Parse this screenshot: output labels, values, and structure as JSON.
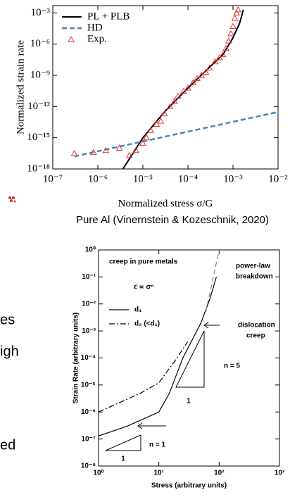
{
  "chart_data": [
    {
      "type": "line",
      "log_x": true,
      "log_y": true,
      "xlabel": "Normalized stress  σ/G",
      "ylabel": "Normalized strain rate",
      "xlim": [
        1e-07,
        0.01
      ],
      "ylim": [
        1e-18,
        0.005
      ],
      "xticks": [
        {
          "value": 1e-07,
          "label": "10⁻⁷"
        },
        {
          "value": 1e-06,
          "label": "10⁻⁶"
        },
        {
          "value": 1e-05,
          "label": "10⁻⁵"
        },
        {
          "value": 0.0001,
          "label": "10⁻⁴"
        },
        {
          "value": 0.001,
          "label": "10⁻³"
        },
        {
          "value": 0.01,
          "label": "10⁻²"
        }
      ],
      "yticks": [
        {
          "value": 1e-18,
          "label": "10⁻¹⁸"
        },
        {
          "value": 1e-15,
          "label": "10⁻¹⁵"
        },
        {
          "value": 1e-12,
          "label": "10⁻¹²"
        },
        {
          "value": 1e-09,
          "label": "10⁻⁹"
        },
        {
          "value": 1e-06,
          "label": "10⁻⁶"
        },
        {
          "value": 0.001,
          "label": "10⁻³"
        }
      ],
      "legend": "upper left",
      "series": [
        {
          "name": "PL + PLB",
          "color": "#000000",
          "style": "solid",
          "x": [
            3.6e-06,
            1e-05,
            3e-05,
            0.0001,
            0.0003,
            0.0006,
            0.001,
            0.0014,
            0.0017
          ],
          "y": [
            1e-18,
            1e-15,
            3e-13,
            6e-11,
            6e-09,
            1e-07,
            4e-06,
            0.0001,
            0.002
          ]
        },
        {
          "name": "HD",
          "color": "#3f88c5",
          "style": "dashed",
          "x": [
            3e-07,
            0.01
          ],
          "y": [
            1.6e-17,
            3e-13
          ]
        },
        {
          "name": "Exp.",
          "color": "#e8343a",
          "style": "triangles",
          "x": [
            3e-07,
            8e-07,
            1.5e-06,
            3e-06,
            5e-06,
            7e-06,
            1e-05,
            1.2e-05,
            1.5e-05,
            2e-05,
            2.5e-05,
            3e-05,
            4e-05,
            5e-05,
            6e-05,
            8e-05,
            0.0001,
            0.00013,
            0.00016,
            0.0002,
            0.00025,
            0.0003,
            0.0004,
            0.0005,
            0.0006,
            0.0007,
            0.0008,
            0.0009,
            0.001,
            0.0011,
            0.0012,
            0.0013
          ],
          "y": [
            3e-17,
            4e-17,
            6e-17,
            1e-16,
            2e-17,
            6e-17,
            3e-16,
            1e-15,
            5e-15,
            2e-14,
            4e-14,
            2e-13,
            1e-12,
            3e-12,
            1e-11,
            3e-11,
            6e-11,
            2e-10,
            5e-10,
            1e-09,
            2e-09,
            5e-09,
            2e-08,
            5e-08,
            1e-07,
            4e-07,
            2e-06,
            1e-05,
            5e-05,
            0.0003,
            0.001,
            0.002
          ]
        }
      ]
    },
    {
      "type": "line",
      "log_x": true,
      "log_y": true,
      "xlabel": "Stress (arbitrary units)",
      "ylabel": "Strain Rate (arbitrary units)",
      "xlim": [
        1,
        1000
      ],
      "ylim": [
        1e-08,
        1
      ],
      "xticks": [
        {
          "value": 1,
          "label": "10⁰"
        },
        {
          "value": 10,
          "label": "10¹"
        },
        {
          "value": 100,
          "label": "10²"
        },
        {
          "value": 1000,
          "label": "10³"
        }
      ],
      "yticks": [
        {
          "value": 1e-08,
          "label": "10⁻⁸"
        },
        {
          "value": 1e-07,
          "label": "10⁻⁷"
        },
        {
          "value": 1e-06,
          "label": "10⁻⁶"
        },
        {
          "value": 1e-05,
          "label": "10⁻⁵"
        },
        {
          "value": 0.0001,
          "label": "10⁻⁴"
        },
        {
          "value": 0.001,
          "label": "10⁻³"
        },
        {
          "value": 0.01,
          "label": "10⁻²"
        },
        {
          "value": 0.1,
          "label": "10⁻¹"
        },
        {
          "value": 1,
          "label": "10⁰"
        }
      ],
      "legend": "center left",
      "series": [
        {
          "name": "d₁",
          "color": "#000000",
          "style": "solid",
          "x": [
            1,
            3,
            10,
            15,
            25,
            50,
            70,
            90
          ],
          "y": [
            1.3e-07,
            3e-07,
            1e-06,
            5e-06,
            0.0001,
            0.002,
            0.015,
            0.1
          ]
        },
        {
          "name": "d₂ (<d₁)",
          "color": "#000000",
          "style": "dashdot",
          "x": [
            1,
            5,
            10,
            20,
            30
          ],
          "y": [
            1e-06,
            5e-06,
            1.2e-05,
            0.0001,
            0.0004
          ]
        },
        {
          "color": "#888888",
          "style": "dashed",
          "x": [
            60,
            100
          ],
          "y": [
            0.005,
            1
          ]
        }
      ],
      "annotations": [
        "creep in pure metals",
        "ε̇ ∝ σⁿ",
        "power-law",
        "breakdown",
        "dislocation",
        "creep",
        "n = 5",
        "1",
        "n = 1",
        "1"
      ]
    }
  ],
  "caption": "Pure Al (Vinernstein & Kozeschnik, 2020)",
  "side_text": [
    "es",
    "igh",
    "ed"
  ]
}
